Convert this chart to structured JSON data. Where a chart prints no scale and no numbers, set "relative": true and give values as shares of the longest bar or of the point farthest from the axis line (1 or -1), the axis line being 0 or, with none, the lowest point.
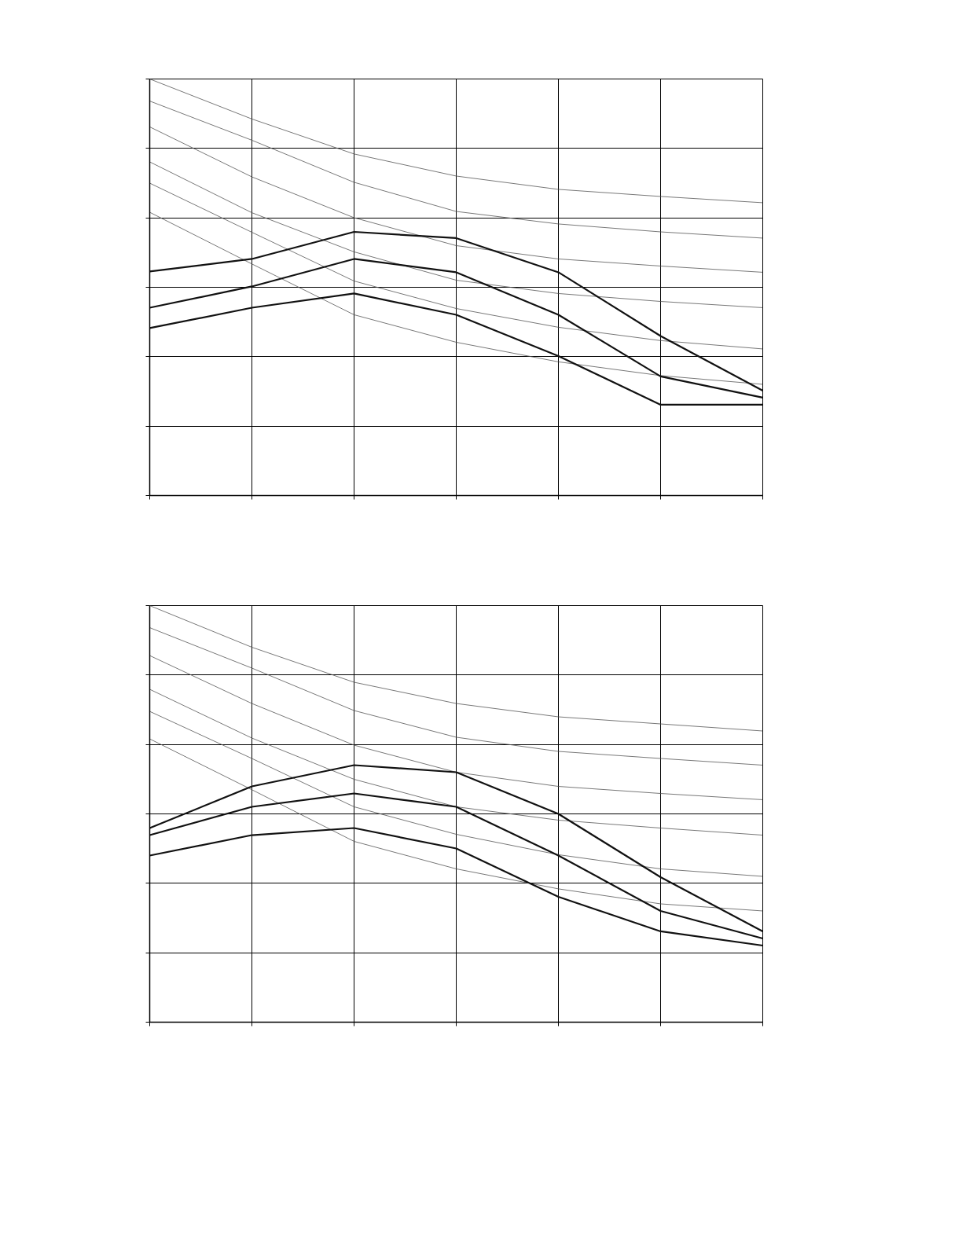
{
  "chart_data": [
    {
      "type": "line",
      "relative": true,
      "grid": true,
      "marker": "none",
      "line_style": "solid",
      "categories": [
        null,
        null,
        null,
        null,
        null,
        null,
        null
      ],
      "series": [
        {
          "color": "#555555",
          "values": [
            1.0,
            0.904,
            0.82,
            0.767,
            0.735,
            0.718,
            0.703
          ]
        },
        {
          "color": "#555555",
          "values": [
            0.947,
            0.853,
            0.752,
            0.682,
            0.652,
            0.633,
            0.618
          ]
        },
        {
          "color": "#555555",
          "values": [
            0.885,
            0.765,
            0.667,
            0.6,
            0.568,
            0.551,
            0.536
          ]
        },
        {
          "color": "#555555",
          "values": [
            0.801,
            0.679,
            0.585,
            0.517,
            0.485,
            0.466,
            0.451
          ]
        },
        {
          "color": "#555555",
          "values": [
            0.75,
            0.632,
            0.515,
            0.449,
            0.404,
            0.372,
            0.352
          ]
        },
        {
          "color": "#555555",
          "values": [
            0.68,
            0.556,
            0.434,
            0.368,
            0.321,
            0.288,
            0.267
          ]
        },
        {
          "color": "#111111",
          "values": [
            0.538,
            0.568,
            0.633,
            0.618,
            0.536,
            0.383,
            0.252
          ]
        },
        {
          "color": "#111111",
          "values": [
            0.451,
            0.502,
            0.568,
            0.536,
            0.434,
            0.286,
            0.235
          ]
        },
        {
          "color": "#111111",
          "values": [
            0.402,
            0.451,
            0.485,
            0.434,
            0.335,
            0.218,
            0.218
          ]
        }
      ]
    },
    {
      "type": "line",
      "relative": true,
      "grid": true,
      "marker": "none",
      "line_style": "solid",
      "categories": [
        null,
        null,
        null,
        null,
        null,
        null,
        null
      ],
      "series": [
        {
          "color": "#555555",
          "values": [
            1.0,
            0.9,
            0.816,
            0.765,
            0.733,
            0.716,
            0.699
          ]
        },
        {
          "color": "#555555",
          "values": [
            0.947,
            0.85,
            0.748,
            0.684,
            0.65,
            0.633,
            0.617
          ]
        },
        {
          "color": "#555555",
          "values": [
            0.88,
            0.765,
            0.665,
            0.6,
            0.566,
            0.549,
            0.534
          ]
        },
        {
          "color": "#555555",
          "values": [
            0.799,
            0.682,
            0.583,
            0.517,
            0.485,
            0.466,
            0.449
          ]
        },
        {
          "color": "#555555",
          "values": [
            0.746,
            0.633,
            0.517,
            0.451,
            0.402,
            0.368,
            0.35
          ]
        },
        {
          "color": "#555555",
          "values": [
            0.68,
            0.558,
            0.434,
            0.368,
            0.32,
            0.284,
            0.267
          ]
        },
        {
          "color": "#111111",
          "values": [
            0.466,
            0.566,
            0.617,
            0.6,
            0.5,
            0.348,
            0.218
          ]
        },
        {
          "color": "#111111",
          "values": [
            0.449,
            0.517,
            0.549,
            0.517,
            0.4,
            0.267,
            0.201
          ]
        },
        {
          "color": "#111111",
          "values": [
            0.4,
            0.449,
            0.466,
            0.417,
            0.301,
            0.218,
            0.184
          ]
        }
      ]
    }
  ]
}
